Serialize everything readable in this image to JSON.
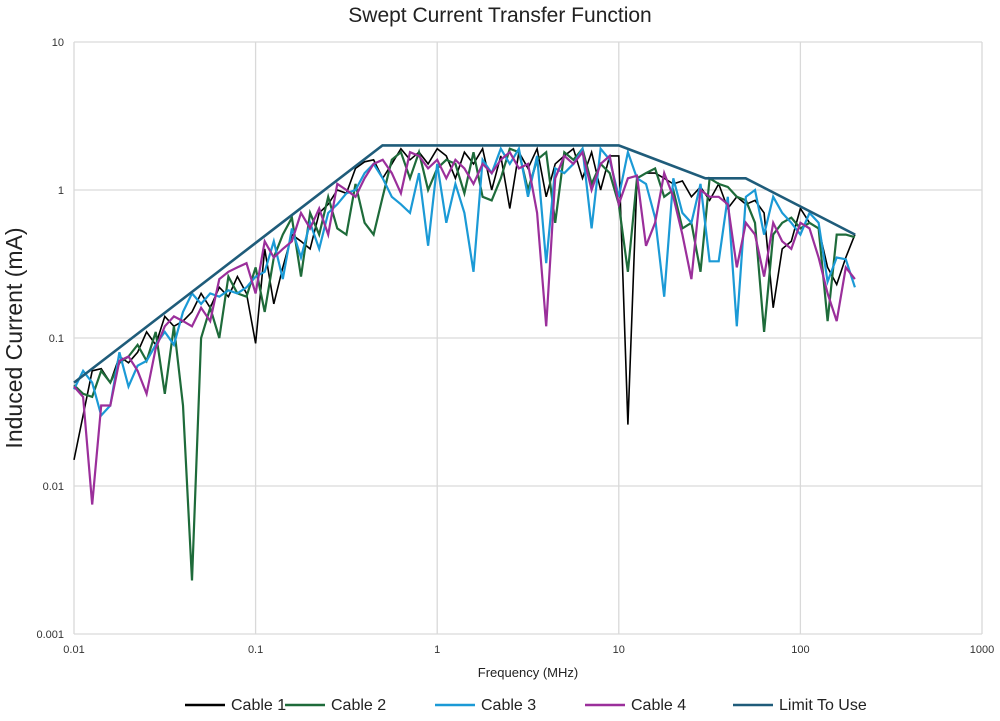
{
  "chart_data": {
    "type": "line",
    "title": "Swept Current Transfer Function",
    "xlabel": "Frequency (MHz)",
    "ylabel": "Induced Current (mA)",
    "xscale": "log",
    "yscale": "log",
    "xlim": [
      0.01,
      1000
    ],
    "ylim": [
      0.001,
      10
    ],
    "xticks": [
      "0.01",
      "0.1",
      "1",
      "10",
      "100",
      "1000"
    ],
    "yticks": [
      "10",
      "1",
      "0.1",
      "0.01",
      "0.001"
    ],
    "grid": true,
    "legend_position": "bottom",
    "x_start": 0.01,
    "points_per_decade": 20,
    "series": [
      {
        "name": "Cable 1",
        "color": "#000000",
        "values": [
          0.015,
          0.03,
          0.06,
          0.062,
          0.05,
          0.075,
          0.068,
          0.08,
          0.11,
          0.09,
          0.14,
          0.12,
          0.13,
          0.15,
          0.2,
          0.16,
          0.22,
          0.19,
          0.26,
          0.2,
          0.092,
          0.4,
          0.17,
          0.3,
          0.5,
          0.45,
          0.4,
          0.7,
          0.8,
          1.0,
          0.95,
          1.4,
          1.55,
          1.6,
          1.2,
          1.5,
          1.9,
          1.6,
          1.8,
          1.5,
          1.9,
          1.7,
          1.2,
          1.8,
          1.5,
          1.9,
          1.0,
          1.7,
          0.75,
          1.8,
          1.4,
          1.9,
          0.9,
          1.5,
          1.7,
          1.9,
          1.2,
          1.8,
          1.0,
          1.7,
          1.7,
          0.026,
          1.2,
          1.3,
          1.3,
          1.2,
          1.1,
          1.15,
          0.9,
          1.05,
          0.85,
          1.1,
          0.75,
          0.9,
          0.8,
          0.85,
          0.7,
          0.16,
          0.4,
          0.45,
          0.75,
          0.6,
          0.55,
          0.3,
          0.23,
          0.35,
          0.5
        ]
      },
      {
        "name": "Cable 2",
        "color": "#1e6b3a",
        "values": [
          0.048,
          0.042,
          0.04,
          0.06,
          0.05,
          0.068,
          0.075,
          0.09,
          0.07,
          0.11,
          0.042,
          0.12,
          0.035,
          0.0023,
          0.1,
          0.16,
          0.1,
          0.26,
          0.2,
          0.19,
          0.3,
          0.15,
          0.35,
          0.5,
          0.65,
          0.26,
          0.7,
          0.5,
          0.9,
          0.55,
          0.5,
          1.1,
          0.6,
          0.5,
          0.9,
          1.6,
          1.8,
          1.2,
          1.8,
          1.0,
          1.4,
          1.6,
          1.5,
          0.95,
          1.8,
          0.9,
          0.85,
          1.2,
          1.9,
          1.8,
          1.0,
          1.6,
          1.8,
          0.6,
          1.8,
          1.6,
          1.9,
          1.1,
          1.5,
          1.3,
          0.8,
          0.28,
          1.2,
          1.3,
          1.4,
          0.9,
          1.0,
          0.55,
          0.6,
          0.28,
          1.2,
          1.1,
          1.05,
          0.9,
          0.85,
          0.6,
          0.11,
          0.5,
          0.6,
          0.65,
          0.55,
          0.6,
          0.55,
          0.13,
          0.5,
          0.5,
          0.48
        ]
      },
      {
        "name": "Cable 3",
        "color": "#1b9ad6",
        "values": [
          0.045,
          0.06,
          0.05,
          0.03,
          0.035,
          0.08,
          0.047,
          0.065,
          0.07,
          0.09,
          0.11,
          0.09,
          0.15,
          0.2,
          0.17,
          0.2,
          0.19,
          0.21,
          0.2,
          0.22,
          0.26,
          0.28,
          0.45,
          0.25,
          0.55,
          0.35,
          0.6,
          0.4,
          0.7,
          0.8,
          0.95,
          1.0,
          1.3,
          1.5,
          1.2,
          0.9,
          0.8,
          0.7,
          1.3,
          0.42,
          1.5,
          0.6,
          1.1,
          0.7,
          0.28,
          1.6,
          1.3,
          1.9,
          1.5,
          1.9,
          0.9,
          1.7,
          0.32,
          1.4,
          1.3,
          1.5,
          1.9,
          0.55,
          1.9,
          1.6,
          0.9,
          1.8,
          1.2,
          1.1,
          0.65,
          0.19,
          1.2,
          0.7,
          0.6,
          1.1,
          0.33,
          0.33,
          0.9,
          0.12,
          0.9,
          1.0,
          0.5,
          0.9,
          0.7,
          0.6,
          0.5,
          0.7,
          0.6,
          0.24,
          0.35,
          0.34,
          0.22
        ]
      },
      {
        "name": "Cable 4",
        "color": "#9b2f9b",
        "values": [
          0.047,
          0.04,
          0.0075,
          0.035,
          0.035,
          0.07,
          0.075,
          0.06,
          0.042,
          0.085,
          0.12,
          0.14,
          0.13,
          0.12,
          0.16,
          0.13,
          0.25,
          0.28,
          0.3,
          0.32,
          0.2,
          0.45,
          0.35,
          0.4,
          0.45,
          0.7,
          0.55,
          0.75,
          0.5,
          1.1,
          1.0,
          0.9,
          1.2,
          1.5,
          1.6,
          1.3,
          0.95,
          1.8,
          1.7,
          1.4,
          1.6,
          1.2,
          1.6,
          1.4,
          1.1,
          1.5,
          1.3,
          1.6,
          1.8,
          1.4,
          1.5,
          0.7,
          0.12,
          1.2,
          1.7,
          1.5,
          1.8,
          1.0,
          1.5,
          1.7,
          0.8,
          1.2,
          1.25,
          0.42,
          0.6,
          1.3,
          0.9,
          0.5,
          0.25,
          1.0,
          0.9,
          0.9,
          0.8,
          0.3,
          0.6,
          0.5,
          0.26,
          0.6,
          0.45,
          0.4,
          0.6,
          0.55,
          0.35,
          0.2,
          0.13,
          0.3,
          0.25
        ]
      },
      {
        "name": "Limit To Use",
        "color": "#1f5c7a",
        "x": [
          0.01,
          0.5,
          10,
          30,
          50,
          200
        ],
        "values": [
          0.05,
          2,
          2,
          1.2,
          1.2,
          0.5
        ]
      }
    ]
  }
}
